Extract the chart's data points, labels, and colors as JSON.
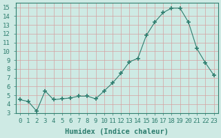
{
  "x": [
    0,
    1,
    2,
    3,
    4,
    5,
    6,
    7,
    8,
    9,
    10,
    11,
    12,
    13,
    14,
    15,
    16,
    17,
    18,
    19,
    20,
    21,
    22,
    23
  ],
  "y": [
    4.5,
    4.3,
    3.2,
    5.5,
    4.5,
    4.6,
    4.7,
    4.9,
    4.9,
    4.6,
    5.5,
    6.4,
    7.5,
    8.8,
    9.2,
    11.8,
    13.3,
    14.4,
    14.9,
    14.9,
    13.3,
    10.3,
    8.7,
    7.3
  ],
  "line_color": "#2d7d6e",
  "marker": "+",
  "marker_size": 4,
  "bg_color": "#ceeae4",
  "grid_color": "#b8d4ce",
  "xlabel": "Humidex (Indice chaleur)",
  "ylim": [
    3,
    15.5
  ],
  "xlim": [
    -0.5,
    23.5
  ],
  "yticks": [
    3,
    4,
    5,
    6,
    7,
    8,
    9,
    10,
    11,
    12,
    13,
    14,
    15
  ],
  "xticks": [
    0,
    1,
    2,
    3,
    4,
    5,
    6,
    7,
    8,
    9,
    10,
    11,
    12,
    13,
    14,
    15,
    16,
    17,
    18,
    19,
    20,
    21,
    22,
    23
  ],
  "tick_fontsize": 6.5,
  "label_fontsize": 7.5
}
